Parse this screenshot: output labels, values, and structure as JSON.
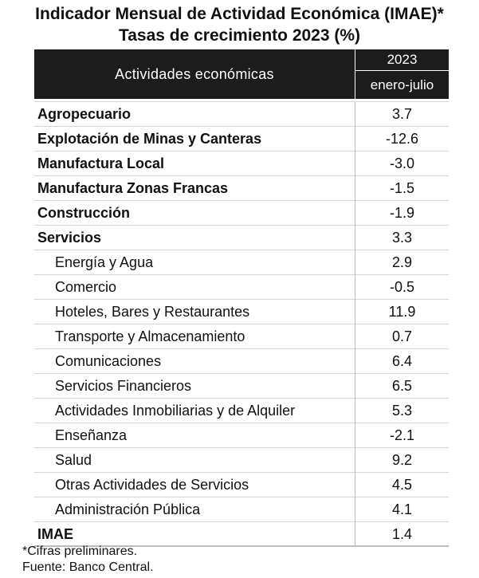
{
  "title": {
    "line1": "Indicador Mensual de Actividad Económica (IMAE)*",
    "line2": "Tasas de crecimiento 2023 (%)"
  },
  "header": {
    "activities": "Actividades económicas",
    "year": "2023",
    "period": "enero-julio"
  },
  "rows": [
    {
      "label": "Agropecuario",
      "value": "3.7",
      "level": "main"
    },
    {
      "label": "Explotación de Minas y Canteras",
      "value": "-12.6",
      "level": "main"
    },
    {
      "label": "Manufactura Local",
      "value": "-3.0",
      "level": "main"
    },
    {
      "label": "Manufactura Zonas Francas",
      "value": "-1.5",
      "level": "main"
    },
    {
      "label": "Construcción",
      "value": "-1.9",
      "level": "main"
    },
    {
      "label": "Servicios",
      "value": "3.3",
      "level": "main"
    },
    {
      "label": "Energía y Agua",
      "value": "2.9",
      "level": "sub"
    },
    {
      "label": "Comercio",
      "value": "-0.5",
      "level": "sub"
    },
    {
      "label": "Hoteles, Bares y Restaurantes",
      "value": "11.9",
      "level": "sub"
    },
    {
      "label": "Transporte y Almacenamiento",
      "value": "0.7",
      "level": "sub"
    },
    {
      "label": "Comunicaciones",
      "value": "6.4",
      "level": "sub"
    },
    {
      "label": "Servicios Financieros",
      "value": "6.5",
      "level": "sub"
    },
    {
      "label": "Actividades Inmobiliarias y de Alquiler",
      "value": "5.3",
      "level": "sub"
    },
    {
      "label": "Enseñanza",
      "value": "-2.1",
      "level": "sub"
    },
    {
      "label": "Salud",
      "value": "9.2",
      "level": "sub"
    },
    {
      "label": "Otras Actividades de Servicios",
      "value": "4.5",
      "level": "sub"
    },
    {
      "label": "Administración Pública",
      "value": "4.1",
      "level": "sub"
    },
    {
      "label": "IMAE",
      "value": "1.4",
      "level": "total"
    }
  ],
  "footnotes": {
    "preliminary": "*Cifras preliminares.",
    "source": "Fuente: Banco Central."
  },
  "colors": {
    "header_bg": "#1c1c1c",
    "header_text": "#ffffff",
    "grid": "#d6d6d6"
  }
}
